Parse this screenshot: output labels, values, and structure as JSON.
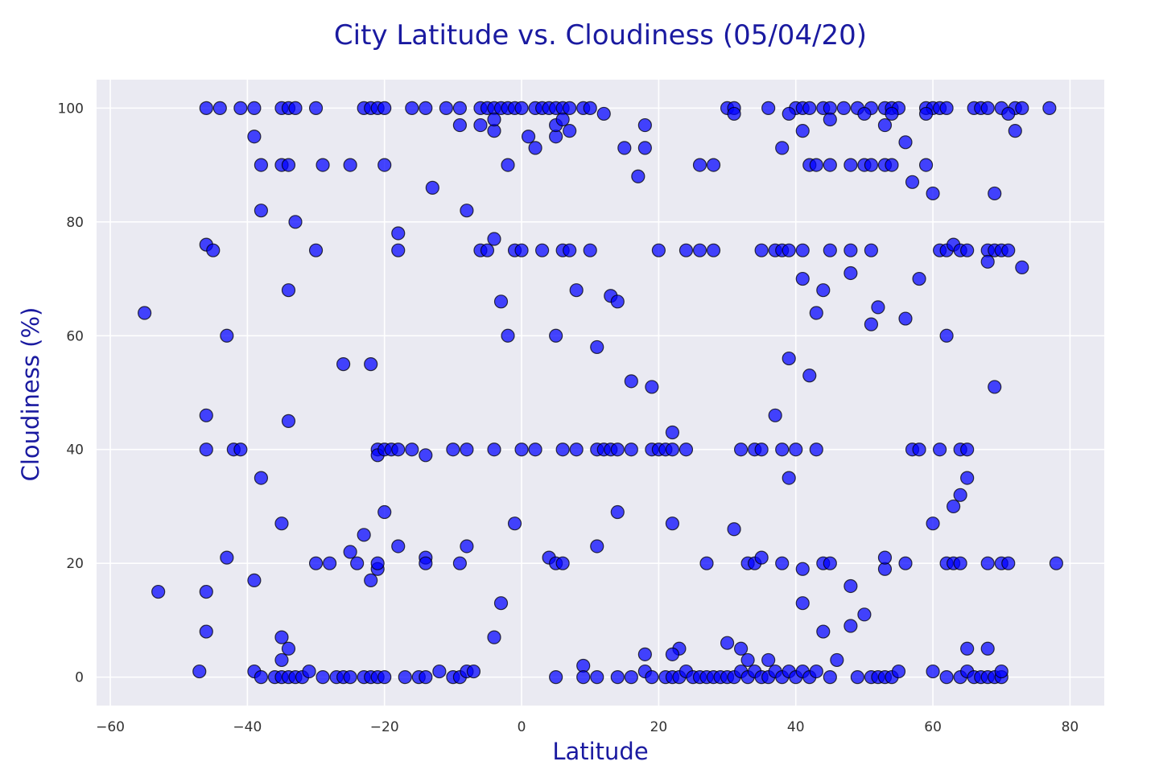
{
  "chart_data": {
    "type": "scatter",
    "title": "City Latitude vs. Cloudiness (05/04/20)",
    "xlabel": "Latitude",
    "ylabel": "Cloudiness (%)",
    "xlim": [
      -62,
      85
    ],
    "ylim": [
      -5,
      105
    ],
    "xticks": [
      -60,
      -40,
      -20,
      0,
      20,
      40,
      60,
      80
    ],
    "yticks": [
      0,
      20,
      40,
      60,
      80,
      100
    ],
    "grid": true,
    "colors": {
      "background": "#eaeaf2",
      "marker_fill": "#0000ff",
      "marker_edge": "#000000",
      "title": "#1a1aa0"
    },
    "points": [
      [
        -46,
        100
      ],
      [
        -44,
        100
      ],
      [
        -41,
        100
      ],
      [
        -39,
        100
      ],
      [
        -35,
        100
      ],
      [
        -34,
        100
      ],
      [
        -33,
        100
      ],
      [
        -30,
        100
      ],
      [
        -23,
        100
      ],
      [
        -22,
        100
      ],
      [
        -21,
        100
      ],
      [
        -20,
        100
      ],
      [
        -16,
        100
      ],
      [
        -14,
        100
      ],
      [
        -11,
        100
      ],
      [
        -9,
        100
      ],
      [
        -6,
        100
      ],
      [
        -5,
        100
      ],
      [
        -4,
        100
      ],
      [
        -3,
        100
      ],
      [
        -2,
        100
      ],
      [
        -1,
        100
      ],
      [
        0,
        100
      ],
      [
        2,
        100
      ],
      [
        3,
        100
      ],
      [
        4,
        100
      ],
      [
        5,
        100
      ],
      [
        6,
        100
      ],
      [
        7,
        100
      ],
      [
        9,
        100
      ],
      [
        10,
        100
      ],
      [
        30,
        100
      ],
      [
        31,
        100
      ],
      [
        36,
        100
      ],
      [
        40,
        100
      ],
      [
        41,
        100
      ],
      [
        42,
        100
      ],
      [
        44,
        100
      ],
      [
        45,
        100
      ],
      [
        47,
        100
      ],
      [
        49,
        100
      ],
      [
        51,
        100
      ],
      [
        53,
        100
      ],
      [
        54,
        100
      ],
      [
        55,
        100
      ],
      [
        59,
        100
      ],
      [
        60,
        100
      ],
      [
        61,
        100
      ],
      [
        62,
        100
      ],
      [
        66,
        100
      ],
      [
        67,
        100
      ],
      [
        68,
        100
      ],
      [
        70,
        100
      ],
      [
        72,
        100
      ],
      [
        73,
        100
      ],
      [
        77,
        100
      ],
      [
        -39,
        95
      ],
      [
        -9,
        97
      ],
      [
        -6,
        97
      ],
      [
        -4,
        96
      ],
      [
        -4,
        98
      ],
      [
        1,
        95
      ],
      [
        5,
        95
      ],
      [
        5,
        97
      ],
      [
        6,
        98
      ],
      [
        7,
        96
      ],
      [
        12,
        99
      ],
      [
        18,
        97
      ],
      [
        31,
        99
      ],
      [
        39,
        99
      ],
      [
        41,
        96
      ],
      [
        45,
        98
      ],
      [
        50,
        99
      ],
      [
        53,
        97
      ],
      [
        54,
        99
      ],
      [
        59,
        99
      ],
      [
        71,
        99
      ],
      [
        72,
        96
      ],
      [
        56,
        94
      ],
      [
        -38,
        90
      ],
      [
        -35,
        90
      ],
      [
        -34,
        90
      ],
      [
        -29,
        90
      ],
      [
        -25,
        90
      ],
      [
        -20,
        90
      ],
      [
        -2,
        90
      ],
      [
        2,
        93
      ],
      [
        15,
        93
      ],
      [
        17,
        88
      ],
      [
        18,
        93
      ],
      [
        26,
        90
      ],
      [
        28,
        90
      ],
      [
        38,
        93
      ],
      [
        42,
        90
      ],
      [
        43,
        90
      ],
      [
        45,
        90
      ],
      [
        48,
        90
      ],
      [
        50,
        90
      ],
      [
        51,
        90
      ],
      [
        53,
        90
      ],
      [
        54,
        90
      ],
      [
        59,
        90
      ],
      [
        -13,
        86
      ],
      [
        57,
        87
      ],
      [
        60,
        85
      ],
      [
        69,
        85
      ],
      [
        -38,
        82
      ],
      [
        -33,
        80
      ],
      [
        -8,
        82
      ],
      [
        -18,
        78
      ],
      [
        -46,
        76
      ],
      [
        -45,
        75
      ],
      [
        -30,
        75
      ],
      [
        -18,
        75
      ],
      [
        -6,
        75
      ],
      [
        -5,
        75
      ],
      [
        -4,
        77
      ],
      [
        -1,
        75
      ],
      [
        0,
        75
      ],
      [
        3,
        75
      ],
      [
        6,
        75
      ],
      [
        7,
        75
      ],
      [
        10,
        75
      ],
      [
        20,
        75
      ],
      [
        24,
        75
      ],
      [
        26,
        75
      ],
      [
        28,
        75
      ],
      [
        35,
        75
      ],
      [
        37,
        75
      ],
      [
        38,
        75
      ],
      [
        39,
        75
      ],
      [
        41,
        75
      ],
      [
        45,
        75
      ],
      [
        48,
        75
      ],
      [
        51,
        75
      ],
      [
        61,
        75
      ],
      [
        62,
        75
      ],
      [
        63,
        76
      ],
      [
        64,
        75
      ],
      [
        65,
        75
      ],
      [
        68,
        75
      ],
      [
        69,
        75
      ],
      [
        70,
        75
      ],
      [
        71,
        75
      ],
      [
        73,
        72
      ],
      [
        68,
        73
      ],
      [
        58,
        70
      ],
      [
        41,
        70
      ],
      [
        44,
        68
      ],
      [
        48,
        71
      ],
      [
        -34,
        68
      ],
      [
        8,
        68
      ],
      [
        13,
        67
      ],
      [
        14,
        66
      ],
      [
        -3,
        66
      ],
      [
        -55,
        64
      ],
      [
        43,
        64
      ],
      [
        52,
        65
      ],
      [
        56,
        63
      ],
      [
        51,
        62
      ],
      [
        -43,
        60
      ],
      [
        -2,
        60
      ],
      [
        5,
        60
      ],
      [
        62,
        60
      ],
      [
        11,
        58
      ],
      [
        39,
        56
      ],
      [
        -26,
        55
      ],
      [
        -22,
        55
      ],
      [
        16,
        52
      ],
      [
        42,
        53
      ],
      [
        19,
        51
      ],
      [
        69,
        51
      ],
      [
        -46,
        46
      ],
      [
        -34,
        45
      ],
      [
        37,
        46
      ],
      [
        22,
        43
      ],
      [
        -46,
        40
      ],
      [
        -42,
        40
      ],
      [
        -41,
        40
      ],
      [
        -21,
        40
      ],
      [
        -21,
        39
      ],
      [
        -20,
        40
      ],
      [
        -19,
        40
      ],
      [
        -18,
        40
      ],
      [
        -16,
        40
      ],
      [
        -14,
        39
      ],
      [
        -10,
        40
      ],
      [
        -8,
        40
      ],
      [
        -4,
        40
      ],
      [
        0,
        40
      ],
      [
        2,
        40
      ],
      [
        6,
        40
      ],
      [
        8,
        40
      ],
      [
        11,
        40
      ],
      [
        12,
        40
      ],
      [
        13,
        40
      ],
      [
        14,
        40
      ],
      [
        16,
        40
      ],
      [
        19,
        40
      ],
      [
        20,
        40
      ],
      [
        21,
        40
      ],
      [
        22,
        40
      ],
      [
        24,
        40
      ],
      [
        32,
        40
      ],
      [
        34,
        40
      ],
      [
        35,
        40
      ],
      [
        38,
        40
      ],
      [
        40,
        40
      ],
      [
        43,
        40
      ],
      [
        57,
        40
      ],
      [
        58,
        40
      ],
      [
        61,
        40
      ],
      [
        64,
        40
      ],
      [
        65,
        40
      ],
      [
        39,
        35
      ],
      [
        65,
        35
      ],
      [
        -38,
        35
      ],
      [
        -20,
        29
      ],
      [
        14,
        29
      ],
      [
        -35,
        27
      ],
      [
        -1,
        27
      ],
      [
        22,
        27
      ],
      [
        60,
        27
      ],
      [
        63,
        30
      ],
      [
        64,
        32
      ],
      [
        31,
        26
      ],
      [
        -43,
        21
      ],
      [
        -30,
        20
      ],
      [
        -28,
        20
      ],
      [
        -25,
        22
      ],
      [
        -24,
        20
      ],
      [
        -23,
        25
      ],
      [
        -22,
        17
      ],
      [
        -21,
        19
      ],
      [
        -21,
        20
      ],
      [
        -18,
        23
      ],
      [
        -14,
        21
      ],
      [
        -14,
        20
      ],
      [
        -9,
        20
      ],
      [
        -8,
        23
      ],
      [
        4,
        21
      ],
      [
        5,
        20
      ],
      [
        6,
        20
      ],
      [
        11,
        23
      ],
      [
        27,
        20
      ],
      [
        33,
        20
      ],
      [
        34,
        20
      ],
      [
        35,
        21
      ],
      [
        38,
        20
      ],
      [
        41,
        19
      ],
      [
        44,
        20
      ],
      [
        45,
        20
      ],
      [
        53,
        19
      ],
      [
        53,
        21
      ],
      [
        56,
        20
      ],
      [
        62,
        20
      ],
      [
        63,
        20
      ],
      [
        64,
        20
      ],
      [
        68,
        20
      ],
      [
        70,
        20
      ],
      [
        71,
        20
      ],
      [
        78,
        20
      ],
      [
        -39,
        17
      ],
      [
        -53,
        15
      ],
      [
        -46,
        15
      ],
      [
        48,
        16
      ],
      [
        41,
        13
      ],
      [
        -3,
        13
      ],
      [
        50,
        11
      ],
      [
        48,
        9
      ],
      [
        -46,
        8
      ],
      [
        -4,
        7
      ],
      [
        44,
        8
      ],
      [
        -35,
        7
      ],
      [
        -34,
        5
      ],
      [
        -35,
        3
      ],
      [
        23,
        5
      ],
      [
        22,
        4
      ],
      [
        30,
        6
      ],
      [
        32,
        5
      ],
      [
        33,
        3
      ],
      [
        36,
        3
      ],
      [
        46,
        3
      ],
      [
        65,
        5
      ],
      [
        68,
        5
      ],
      [
        18,
        4
      ],
      [
        9,
        2
      ],
      [
        -47,
        1
      ],
      [
        -39,
        1
      ],
      [
        -38,
        0
      ],
      [
        -36,
        0
      ],
      [
        -35,
        0
      ],
      [
        -34,
        0
      ],
      [
        -33,
        0
      ],
      [
        -32,
        0
      ],
      [
        -31,
        1
      ],
      [
        -29,
        0
      ],
      [
        -27,
        0
      ],
      [
        -26,
        0
      ],
      [
        -25,
        0
      ],
      [
        -23,
        0
      ],
      [
        -22,
        0
      ],
      [
        -21,
        0
      ],
      [
        -20,
        0
      ],
      [
        -17,
        0
      ],
      [
        -15,
        0
      ],
      [
        -14,
        0
      ],
      [
        -12,
        1
      ],
      [
        -10,
        0
      ],
      [
        -9,
        0
      ],
      [
        -8,
        1
      ],
      [
        -7,
        1
      ],
      [
        5,
        0
      ],
      [
        9,
        0
      ],
      [
        11,
        0
      ],
      [
        14,
        0
      ],
      [
        16,
        0
      ],
      [
        18,
        1
      ],
      [
        19,
        0
      ],
      [
        21,
        0
      ],
      [
        22,
        0
      ],
      [
        23,
        0
      ],
      [
        24,
        1
      ],
      [
        25,
        0
      ],
      [
        26,
        0
      ],
      [
        27,
        0
      ],
      [
        28,
        0
      ],
      [
        29,
        0
      ],
      [
        30,
        0
      ],
      [
        31,
        0
      ],
      [
        32,
        1
      ],
      [
        33,
        0
      ],
      [
        34,
        1
      ],
      [
        35,
        0
      ],
      [
        36,
        0
      ],
      [
        37,
        1
      ],
      [
        38,
        0
      ],
      [
        39,
        1
      ],
      [
        40,
        0
      ],
      [
        41,
        1
      ],
      [
        42,
        0
      ],
      [
        43,
        1
      ],
      [
        45,
        0
      ],
      [
        49,
        0
      ],
      [
        51,
        0
      ],
      [
        52,
        0
      ],
      [
        53,
        0
      ],
      [
        54,
        0
      ],
      [
        55,
        1
      ],
      [
        60,
        1
      ],
      [
        62,
        0
      ],
      [
        64,
        0
      ],
      [
        65,
        1
      ],
      [
        66,
        0
      ],
      [
        67,
        0
      ],
      [
        68,
        0
      ],
      [
        69,
        0
      ],
      [
        70,
        0
      ],
      [
        70,
        1
      ]
    ]
  }
}
